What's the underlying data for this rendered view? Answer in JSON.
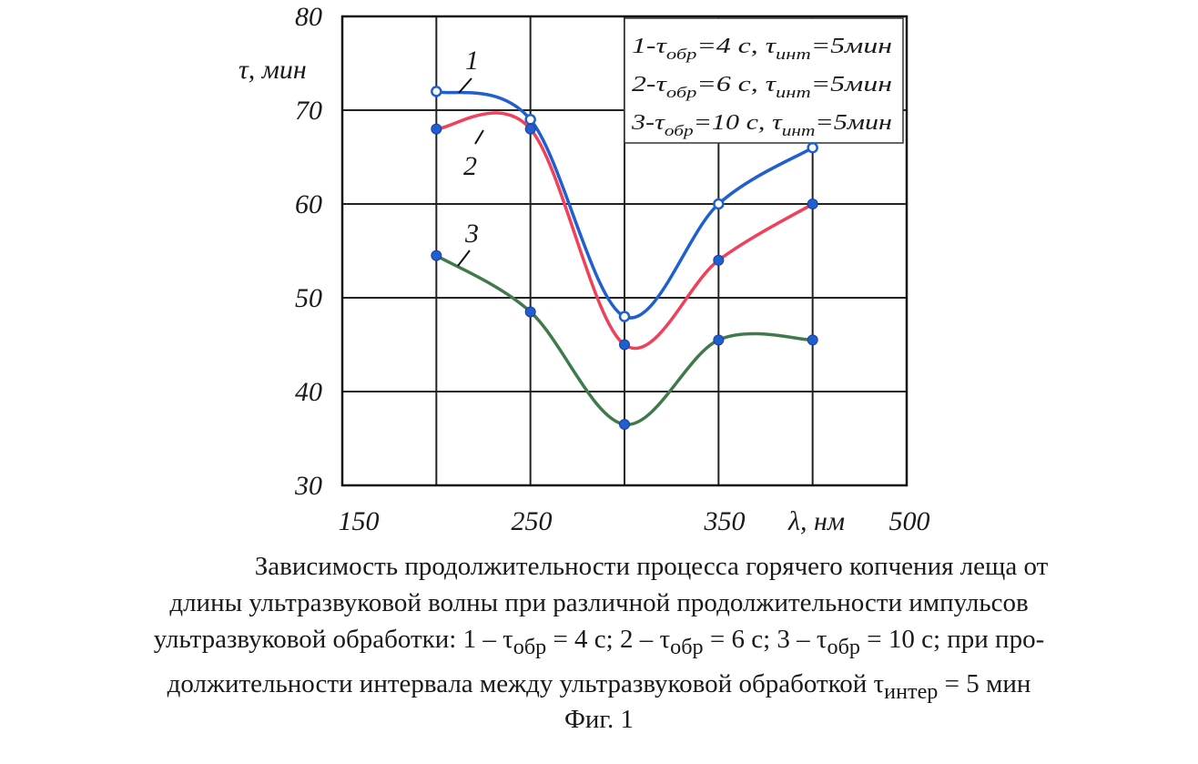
{
  "chart_data": {
    "type": "line",
    "ylabel": "τ, мин",
    "xlabel": "λ, нм",
    "x_ticks": [
      "150",
      "250",
      "350",
      "500"
    ],
    "y_ticks": [
      "30",
      "40",
      "50",
      "60",
      "70",
      "80"
    ],
    "xlim": [
      150,
      500
    ],
    "ylim": [
      30,
      80
    ],
    "grid": true,
    "legend_position": "top-right",
    "x": [
      200,
      250,
      300,
      350,
      400
    ],
    "series": [
      {
        "name": "1",
        "color": "#1f5fd0",
        "marker": "hollow",
        "values": [
          72,
          69,
          48,
          60,
          66
        ]
      },
      {
        "name": "2",
        "color": "#f0405a",
        "marker": "filled",
        "values": [
          68,
          68,
          45,
          54,
          60
        ]
      },
      {
        "name": "3",
        "color": "#3f7a4a",
        "marker": "filled",
        "values": [
          54.5,
          48.5,
          36.5,
          45.5,
          45.5
        ]
      }
    ],
    "legend": [
      {
        "prefix": "1-τ",
        "sub1": "обр",
        "mid": "=4 с, τ",
        "sub2": "инт",
        "suffix": "=5мин"
      },
      {
        "prefix": "2-τ",
        "sub1": "обр",
        "mid": "=6 с, τ",
        "sub2": "инт",
        "suffix": "=5мин"
      },
      {
        "prefix": "3-τ",
        "sub1": "обр",
        "mid": "=10 с, τ",
        "sub2": "инт",
        "suffix": "=5мин"
      }
    ],
    "curve_labels": [
      "1",
      "2",
      "3"
    ]
  },
  "caption": {
    "lines": [
      "Зависимость продолжительности процесса горячего копчения леща от",
      "длины ультразвуковой волны при различной продолжительности импульсов",
      "ультразвуковой обработки: 1 – τ<sub>обр</sub> = 4 с; 2 – τ<sub>обр</sub> = 6 с; 3 – τ<sub>обр</sub> = 10 с; при про-",
      "должительности интервала между ультразвуковой обработкой τ<sub>интер</sub> = 5 мин"
    ],
    "figure": "Фиг. 1"
  }
}
